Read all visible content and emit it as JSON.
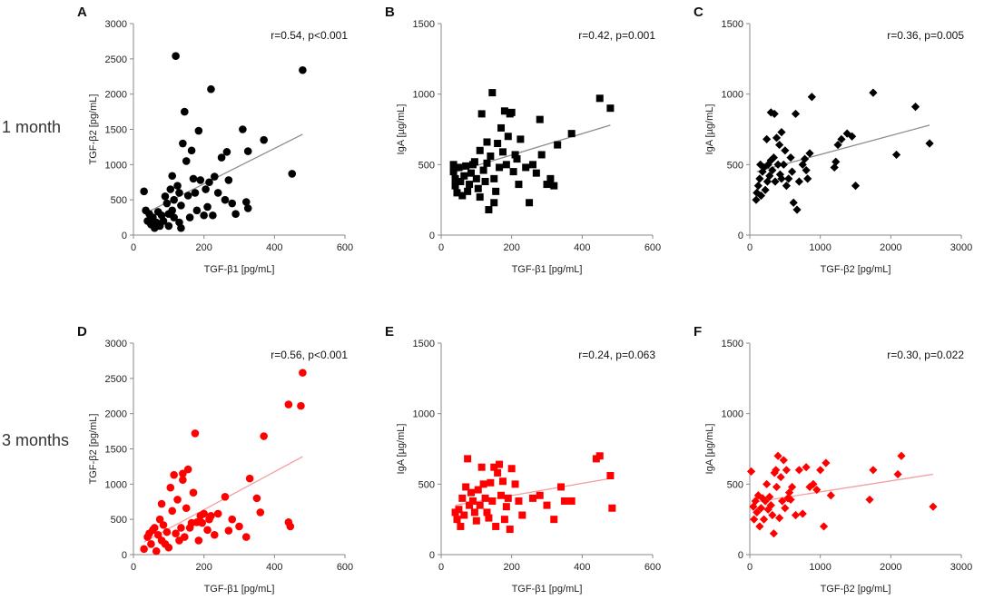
{
  "row_labels": [
    "1 month",
    "3 months"
  ],
  "chart_data": [
    {
      "panel": "A",
      "type": "scatter",
      "color": "#000000",
      "marker": "circle",
      "row": 0,
      "col": 0,
      "xlabel": "TGF-β1 [pg/mL]",
      "ylabel": "TGF-β2 [pg/mL]",
      "xlim": [
        0,
        600
      ],
      "ylim": [
        0,
        3000
      ],
      "xticks": [
        0,
        200,
        400,
        600
      ],
      "yticks": [
        0,
        500,
        1000,
        1500,
        2000,
        2500,
        3000
      ],
      "annotation": "r=0.54, p<0.001",
      "trendline": [
        [
          30,
          300
        ],
        [
          480,
          1430
        ]
      ],
      "points": [
        [
          30,
          620
        ],
        [
          35,
          350
        ],
        [
          40,
          200
        ],
        [
          45,
          300
        ],
        [
          50,
          150
        ],
        [
          55,
          250
        ],
        [
          60,
          100
        ],
        [
          65,
          180
        ],
        [
          70,
          330
        ],
        [
          75,
          130
        ],
        [
          80,
          280
        ],
        [
          85,
          200
        ],
        [
          90,
          550
        ],
        [
          95,
          450
        ],
        [
          100,
          130
        ],
        [
          100,
          300
        ],
        [
          105,
          650
        ],
        [
          110,
          840
        ],
        [
          110,
          350
        ],
        [
          115,
          500
        ],
        [
          115,
          250
        ],
        [
          120,
          2540
        ],
        [
          125,
          700
        ],
        [
          130,
          600
        ],
        [
          130,
          180
        ],
        [
          135,
          100
        ],
        [
          135,
          420
        ],
        [
          140,
          1300
        ],
        [
          145,
          1750
        ],
        [
          150,
          1050
        ],
        [
          155,
          560
        ],
        [
          160,
          250
        ],
        [
          165,
          1200
        ],
        [
          170,
          800
        ],
        [
          175,
          600
        ],
        [
          180,
          350
        ],
        [
          185,
          1480
        ],
        [
          190,
          780
        ],
        [
          200,
          280
        ],
        [
          205,
          650
        ],
        [
          210,
          400
        ],
        [
          215,
          750
        ],
        [
          220,
          2070
        ],
        [
          225,
          280
        ],
        [
          230,
          830
        ],
        [
          240,
          600
        ],
        [
          250,
          1100
        ],
        [
          260,
          500
        ],
        [
          265,
          1180
        ],
        [
          270,
          780
        ],
        [
          280,
          450
        ],
        [
          290,
          300
        ],
        [
          310,
          1500
        ],
        [
          320,
          470
        ],
        [
          325,
          380
        ],
        [
          325,
          1190
        ],
        [
          370,
          1350
        ],
        [
          450,
          870
        ],
        [
          480,
          2340
        ]
      ]
    },
    {
      "panel": "B",
      "type": "scatter",
      "color": "#000000",
      "marker": "square",
      "row": 0,
      "col": 1,
      "xlabel": "TGF-β1 [pg/mL]",
      "ylabel": "IgA [µg/mL]",
      "xlim": [
        0,
        600
      ],
      "ylim": [
        0,
        1500
      ],
      "xticks": [
        0,
        200,
        400,
        600
      ],
      "yticks": [
        0,
        500,
        1000,
        1500
      ],
      "annotation": "r=0.42, p=0.001",
      "trendline": [
        [
          30,
          440
        ],
        [
          480,
          780
        ]
      ],
      "points": [
        [
          35,
          500
        ],
        [
          35,
          450
        ],
        [
          40,
          350
        ],
        [
          40,
          400
        ],
        [
          45,
          300
        ],
        [
          50,
          480
        ],
        [
          55,
          380
        ],
        [
          60,
          280
        ],
        [
          65,
          420
        ],
        [
          70,
          490
        ],
        [
          75,
          310
        ],
        [
          80,
          360
        ],
        [
          85,
          440
        ],
        [
          90,
          500
        ],
        [
          95,
          520
        ],
        [
          100,
          400
        ],
        [
          105,
          330
        ],
        [
          110,
          270
        ],
        [
          110,
          600
        ],
        [
          115,
          860
        ],
        [
          120,
          460
        ],
        [
          125,
          380
        ],
        [
          130,
          510
        ],
        [
          130,
          660
        ],
        [
          135,
          180
        ],
        [
          140,
          560
        ],
        [
          145,
          1010
        ],
        [
          150,
          230
        ],
        [
          150,
          400
        ],
        [
          155,
          310
        ],
        [
          160,
          650
        ],
        [
          165,
          480
        ],
        [
          170,
          760
        ],
        [
          175,
          590
        ],
        [
          180,
          880
        ],
        [
          185,
          500
        ],
        [
          190,
          700
        ],
        [
          195,
          860
        ],
        [
          200,
          870
        ],
        [
          205,
          450
        ],
        [
          210,
          570
        ],
        [
          215,
          540
        ],
        [
          220,
          360
        ],
        [
          225,
          680
        ],
        [
          240,
          480
        ],
        [
          250,
          230
        ],
        [
          260,
          500
        ],
        [
          270,
          440
        ],
        [
          280,
          820
        ],
        [
          285,
          570
        ],
        [
          300,
          360
        ],
        [
          310,
          400
        ],
        [
          320,
          350
        ],
        [
          330,
          640
        ],
        [
          370,
          720
        ],
        [
          450,
          970
        ],
        [
          480,
          900
        ]
      ]
    },
    {
      "panel": "C",
      "type": "scatter",
      "color": "#000000",
      "marker": "diamond",
      "row": 0,
      "col": 2,
      "xlabel": "TGF-β2 [pg/mL]",
      "ylabel": "IgA [µg/mL]",
      "xlim": [
        0,
        3000
      ],
      "ylim": [
        0,
        1500
      ],
      "xticks": [
        0,
        1000,
        2000,
        3000
      ],
      "yticks": [
        0,
        500,
        1000,
        1500
      ],
      "annotation": "r=0.36, p=0.005",
      "trendline": [
        [
          100,
          450
        ],
        [
          2550,
          780
        ]
      ],
      "points": [
        [
          90,
          250
        ],
        [
          100,
          300
        ],
        [
          120,
          350
        ],
        [
          140,
          400
        ],
        [
          150,
          500
        ],
        [
          160,
          280
        ],
        [
          180,
          450
        ],
        [
          200,
          480
        ],
        [
          220,
          320
        ],
        [
          240,
          680
        ],
        [
          250,
          380
        ],
        [
          260,
          500
        ],
        [
          280,
          420
        ],
        [
          300,
          870
        ],
        [
          300,
          530
        ],
        [
          320,
          460
        ],
        [
          340,
          550
        ],
        [
          350,
          860
        ],
        [
          360,
          380
        ],
        [
          380,
          690
        ],
        [
          400,
          500
        ],
        [
          420,
          640
        ],
        [
          430,
          430
        ],
        [
          450,
          400
        ],
        [
          450,
          730
        ],
        [
          480,
          500
        ],
        [
          500,
          600
        ],
        [
          520,
          350
        ],
        [
          550,
          400
        ],
        [
          580,
          550
        ],
        [
          600,
          450
        ],
        [
          620,
          230
        ],
        [
          650,
          860
        ],
        [
          670,
          180
        ],
        [
          700,
          380
        ],
        [
          750,
          500
        ],
        [
          780,
          540
        ],
        [
          800,
          460
        ],
        [
          820,
          400
        ],
        [
          850,
          580
        ],
        [
          880,
          980
        ],
        [
          1200,
          480
        ],
        [
          1220,
          520
        ],
        [
          1250,
          640
        ],
        [
          1300,
          680
        ],
        [
          1380,
          720
        ],
        [
          1450,
          700
        ],
        [
          1500,
          350
        ],
        [
          1750,
          1010
        ],
        [
          2080,
          570
        ],
        [
          2350,
          910
        ],
        [
          2550,
          650
        ]
      ]
    },
    {
      "panel": "D",
      "type": "scatter",
      "color": "#ff0000",
      "marker": "circle",
      "row": 1,
      "col": 0,
      "xlabel": "TGF-β1 [pg/mL]",
      "ylabel": "TGF-β2 [pg/mL]",
      "xlim": [
        0,
        600
      ],
      "ylim": [
        0,
        3000
      ],
      "xticks": [
        0,
        200,
        400,
        600
      ],
      "yticks": [
        0,
        500,
        1000,
        1500,
        2000,
        2500,
        3000
      ],
      "annotation": "r=0.56, p<0.001",
      "trendline": [
        [
          30,
          180
        ],
        [
          480,
          1390
        ]
      ],
      "points": [
        [
          30,
          80
        ],
        [
          40,
          250
        ],
        [
          45,
          300
        ],
        [
          50,
          150
        ],
        [
          55,
          350
        ],
        [
          60,
          380
        ],
        [
          65,
          50
        ],
        [
          70,
          280
        ],
        [
          75,
          500
        ],
        [
          80,
          200
        ],
        [
          80,
          720
        ],
        [
          85,
          420
        ],
        [
          90,
          150
        ],
        [
          95,
          320
        ],
        [
          100,
          100
        ],
        [
          105,
          950
        ],
        [
          110,
          620
        ],
        [
          115,
          1130
        ],
        [
          120,
          300
        ],
        [
          125,
          780
        ],
        [
          130,
          200
        ],
        [
          135,
          380
        ],
        [
          140,
          1060
        ],
        [
          140,
          1150
        ],
        [
          145,
          250
        ],
        [
          150,
          660
        ],
        [
          155,
          1210
        ],
        [
          160,
          380
        ],
        [
          165,
          450
        ],
        [
          170,
          880
        ],
        [
          175,
          1720
        ],
        [
          180,
          460
        ],
        [
          185,
          200
        ],
        [
          190,
          550
        ],
        [
          195,
          450
        ],
        [
          200,
          580
        ],
        [
          210,
          350
        ],
        [
          215,
          500
        ],
        [
          220,
          550
        ],
        [
          230,
          280
        ],
        [
          240,
          580
        ],
        [
          260,
          820
        ],
        [
          270,
          340
        ],
        [
          280,
          500
        ],
        [
          300,
          400
        ],
        [
          320,
          250
        ],
        [
          330,
          1080
        ],
        [
          350,
          800
        ],
        [
          360,
          600
        ],
        [
          370,
          1680
        ],
        [
          440,
          2130
        ],
        [
          440,
          460
        ],
        [
          445,
          400
        ],
        [
          475,
          2110
        ],
        [
          480,
          2580
        ]
      ]
    },
    {
      "panel": "E",
      "type": "scatter",
      "color": "#ff0000",
      "marker": "square",
      "row": 1,
      "col": 1,
      "xlabel": "TGF-β1 [pg/mL]",
      "ylabel": "IgA [µg/mL]",
      "xlim": [
        0,
        600
      ],
      "ylim": [
        0,
        1500
      ],
      "xticks": [
        0,
        200,
        400,
        600
      ],
      "yticks": [
        0,
        500,
        1000,
        1500
      ],
      "annotation": "r=0.24, p=0.063",
      "trendline": [
        [
          40,
          350
        ],
        [
          480,
          540
        ]
      ],
      "points": [
        [
          40,
          300
        ],
        [
          45,
          250
        ],
        [
          50,
          320
        ],
        [
          55,
          200
        ],
        [
          60,
          400
        ],
        [
          65,
          280
        ],
        [
          70,
          480
        ],
        [
          75,
          680
        ],
        [
          80,
          350
        ],
        [
          85,
          440
        ],
        [
          90,
          380
        ],
        [
          95,
          300
        ],
        [
          100,
          240
        ],
        [
          105,
          460
        ],
        [
          110,
          350
        ],
        [
          115,
          620
        ],
        [
          120,
          500
        ],
        [
          125,
          400
        ],
        [
          130,
          300
        ],
        [
          135,
          260
        ],
        [
          140,
          510
        ],
        [
          145,
          380
        ],
        [
          150,
          620
        ],
        [
          155,
          200
        ],
        [
          160,
          580
        ],
        [
          165,
          640
        ],
        [
          170,
          420
        ],
        [
          175,
          520
        ],
        [
          180,
          250
        ],
        [
          185,
          340
        ],
        [
          190,
          400
        ],
        [
          195,
          180
        ],
        [
          200,
          610
        ],
        [
          210,
          500
        ],
        [
          220,
          380
        ],
        [
          230,
          280
        ],
        [
          260,
          400
        ],
        [
          280,
          420
        ],
        [
          300,
          350
        ],
        [
          320,
          250
        ],
        [
          340,
          480
        ],
        [
          350,
          380
        ],
        [
          370,
          380
        ],
        [
          440,
          680
        ],
        [
          450,
          700
        ],
        [
          480,
          560
        ],
        [
          485,
          330
        ]
      ]
    },
    {
      "panel": "F",
      "type": "scatter",
      "color": "#ff0000",
      "marker": "diamond",
      "row": 1,
      "col": 2,
      "xlabel": "TGF-β2 [pg/mL]",
      "ylabel": "IgA [µg/mL]",
      "xlim": [
        0,
        3000
      ],
      "ylim": [
        0,
        1500
      ],
      "xticks": [
        0,
        1000,
        2000,
        3000
      ],
      "yticks": [
        0,
        500,
        1000,
        1500
      ],
      "annotation": "r=0.30, p=0.022",
      "trendline": [
        [
          40,
          370
        ],
        [
          2600,
          570
        ]
      ],
      "points": [
        [
          20,
          590
        ],
        [
          50,
          340
        ],
        [
          60,
          250
        ],
        [
          80,
          380
        ],
        [
          100,
          300
        ],
        [
          120,
          420
        ],
        [
          140,
          200
        ],
        [
          160,
          330
        ],
        [
          180,
          400
        ],
        [
          200,
          250
        ],
        [
          220,
          380
        ],
        [
          240,
          500
        ],
        [
          260,
          320
        ],
        [
          280,
          410
        ],
        [
          300,
          350
        ],
        [
          320,
          280
        ],
        [
          340,
          150
        ],
        [
          350,
          580
        ],
        [
          370,
          600
        ],
        [
          380,
          480
        ],
        [
          400,
          700
        ],
        [
          420,
          260
        ],
        [
          440,
          550
        ],
        [
          460,
          380
        ],
        [
          480,
          670
        ],
        [
          500,
          330
        ],
        [
          520,
          600
        ],
        [
          540,
          400
        ],
        [
          560,
          440
        ],
        [
          580,
          390
        ],
        [
          600,
          480
        ],
        [
          650,
          280
        ],
        [
          700,
          600
        ],
        [
          750,
          290
        ],
        [
          800,
          620
        ],
        [
          850,
          480
        ],
        [
          900,
          500
        ],
        [
          950,
          460
        ],
        [
          1000,
          600
        ],
        [
          1050,
          200
        ],
        [
          1080,
          650
        ],
        [
          1150,
          420
        ],
        [
          1700,
          390
        ],
        [
          1750,
          600
        ],
        [
          2100,
          570
        ],
        [
          2150,
          700
        ],
        [
          2600,
          340
        ]
      ]
    }
  ]
}
